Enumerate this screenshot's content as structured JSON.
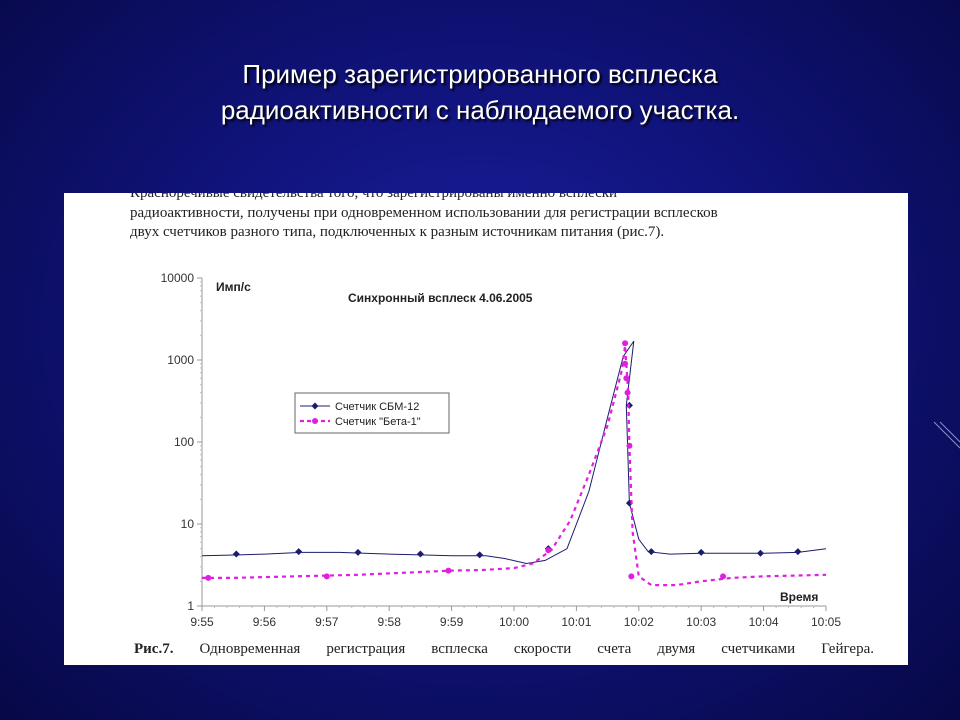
{
  "slide": {
    "title_line1": "Пример зарегистрированного всплеска",
    "title_line2": "радиоактивности с наблюдаемого участка."
  },
  "document": {
    "text_line1": "Красноречивые свидетельства того, что зарегистрированы именно всплески",
    "text_line2": "радиоактивности, получены при одновременном использовании для регистрации всплесков",
    "text_line3": "двух счетчиков разного типа, подключенных к разным источникам питания (рис.7).",
    "caption_label": "Рис.7.",
    "caption_text": "Одновременная регистрация всплеска скорости счета двумя счетчиками Гейгера."
  },
  "colors": {
    "background": "#10137a",
    "series_sbm": "#1c1c6e",
    "series_beta": "#e020e0"
  },
  "chart_data": {
    "type": "line",
    "title": "Синхронный всплеск 4.06.2005",
    "ylabel": "Имп/с",
    "xlabel": "Время",
    "yscale": "log",
    "ylim": [
      1,
      10000
    ],
    "yticks": [
      "1",
      "10",
      "100",
      "1000",
      "10000"
    ],
    "xticks": [
      "9:55",
      "9:56",
      "9:57",
      "9:58",
      "9:59",
      "10:00",
      "10:01",
      "10:02",
      "10:03",
      "10:04",
      "10:05"
    ],
    "xlim_minutes_after_955": [
      0,
      10
    ],
    "series": [
      {
        "name": "Счетчик СБМ-12",
        "marker": "diamond",
        "line": "solid",
        "points": [
          [
            0,
            4.1
          ],
          [
            0.6,
            4.2
          ],
          [
            1.0,
            4.3
          ],
          [
            1.6,
            4.5
          ],
          [
            2.2,
            4.5
          ],
          [
            2.6,
            4.4
          ],
          [
            3.0,
            4.3
          ],
          [
            3.5,
            4.2
          ],
          [
            4.0,
            4.1
          ],
          [
            4.55,
            4.1
          ],
          [
            4.85,
            3.8
          ],
          [
            5.2,
            3.3
          ],
          [
            5.5,
            3.6
          ],
          [
            5.85,
            5.0
          ],
          [
            6.2,
            25
          ],
          [
            6.5,
            200
          ],
          [
            6.75,
            1100
          ],
          [
            6.92,
            1700
          ],
          [
            6.8,
            280
          ],
          [
            6.85,
            18
          ],
          [
            7.0,
            6.5
          ],
          [
            7.15,
            4.6
          ],
          [
            7.5,
            4.3
          ],
          [
            8.0,
            4.4
          ],
          [
            8.5,
            4.4
          ],
          [
            9.0,
            4.4
          ],
          [
            9.55,
            4.5
          ],
          [
            10.0,
            5.0
          ]
        ],
        "markers": [
          [
            0.55,
            4.3
          ],
          [
            1.55,
            4.6
          ],
          [
            2.5,
            4.5
          ],
          [
            3.5,
            4.3
          ],
          [
            4.45,
            4.2
          ],
          [
            5.55,
            5.0
          ],
          [
            6.85,
            280
          ],
          [
            6.85,
            18
          ],
          [
            7.2,
            4.6
          ],
          [
            8.0,
            4.5
          ],
          [
            8.95,
            4.4
          ],
          [
            9.55,
            4.6
          ]
        ]
      },
      {
        "name": "Счетчик \"Бета-1\"",
        "marker": "circle",
        "line": "dashed",
        "points": [
          [
            0,
            2.2
          ],
          [
            0.5,
            2.2
          ],
          [
            1.0,
            2.25
          ],
          [
            1.5,
            2.3
          ],
          [
            2.0,
            2.35
          ],
          [
            2.5,
            2.4
          ],
          [
            3.0,
            2.5
          ],
          [
            3.5,
            2.6
          ],
          [
            4.0,
            2.7
          ],
          [
            4.5,
            2.75
          ],
          [
            5.0,
            2.9
          ],
          [
            5.3,
            3.3
          ],
          [
            5.6,
            4.8
          ],
          [
            5.9,
            11
          ],
          [
            6.2,
            40
          ],
          [
            6.5,
            160
          ],
          [
            6.72,
            700
          ],
          [
            6.78,
            1500
          ],
          [
            6.83,
            400
          ],
          [
            6.85,
            90
          ],
          [
            6.9,
            8
          ],
          [
            7.0,
            2.3
          ],
          [
            7.2,
            1.8
          ],
          [
            7.6,
            1.8
          ],
          [
            8.0,
            2.0
          ],
          [
            8.5,
            2.2
          ],
          [
            9.0,
            2.3
          ],
          [
            9.5,
            2.35
          ],
          [
            10.0,
            2.4
          ]
        ],
        "markers": [
          [
            0.1,
            2.2
          ],
          [
            2.0,
            2.3
          ],
          [
            3.95,
            2.7
          ],
          [
            5.55,
            4.8
          ],
          [
            6.78,
            1600
          ],
          [
            6.78,
            900
          ],
          [
            6.8,
            600
          ],
          [
            6.82,
            400
          ],
          [
            6.85,
            90
          ],
          [
            6.88,
            2.3
          ],
          [
            8.35,
            2.3
          ]
        ]
      }
    ]
  }
}
